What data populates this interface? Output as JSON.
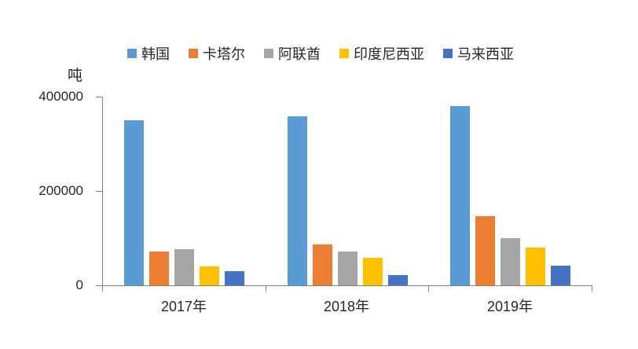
{
  "chart_data": {
    "type": "bar",
    "title": "",
    "unit_label": "吨",
    "categories": [
      "2017年",
      "2018年",
      "2019年"
    ],
    "series": [
      {
        "name": "韩国",
        "key": "south-korea",
        "color": "#5B9BD5",
        "values": [
          350000,
          358000,
          380000
        ]
      },
      {
        "name": "卡塔尔",
        "key": "qatar",
        "color": "#ED7D31",
        "values": [
          72000,
          86000,
          147000
        ]
      },
      {
        "name": "阿联酋",
        "key": "uae",
        "color": "#A5A5A5",
        "values": [
          76000,
          72000,
          100000
        ]
      },
      {
        "name": "印度尼西亚",
        "key": "indonesia",
        "color": "#FFC000",
        "values": [
          40000,
          59000,
          80000
        ]
      },
      {
        "name": "马来西亚",
        "key": "malaysia",
        "color": "#4472C4",
        "values": [
          30000,
          22000,
          42000
        ]
      }
    ],
    "ylim": [
      0,
      400000
    ],
    "yticks": [
      0,
      200000,
      400000
    ],
    "ytick_labels": [
      "0",
      "200000",
      "400000"
    ],
    "xlabel": "",
    "ylabel": "吨",
    "legend_position": "top",
    "grid": false,
    "axis_color": "#808080",
    "text_color": "#262626",
    "background_color": "#ffffff"
  }
}
